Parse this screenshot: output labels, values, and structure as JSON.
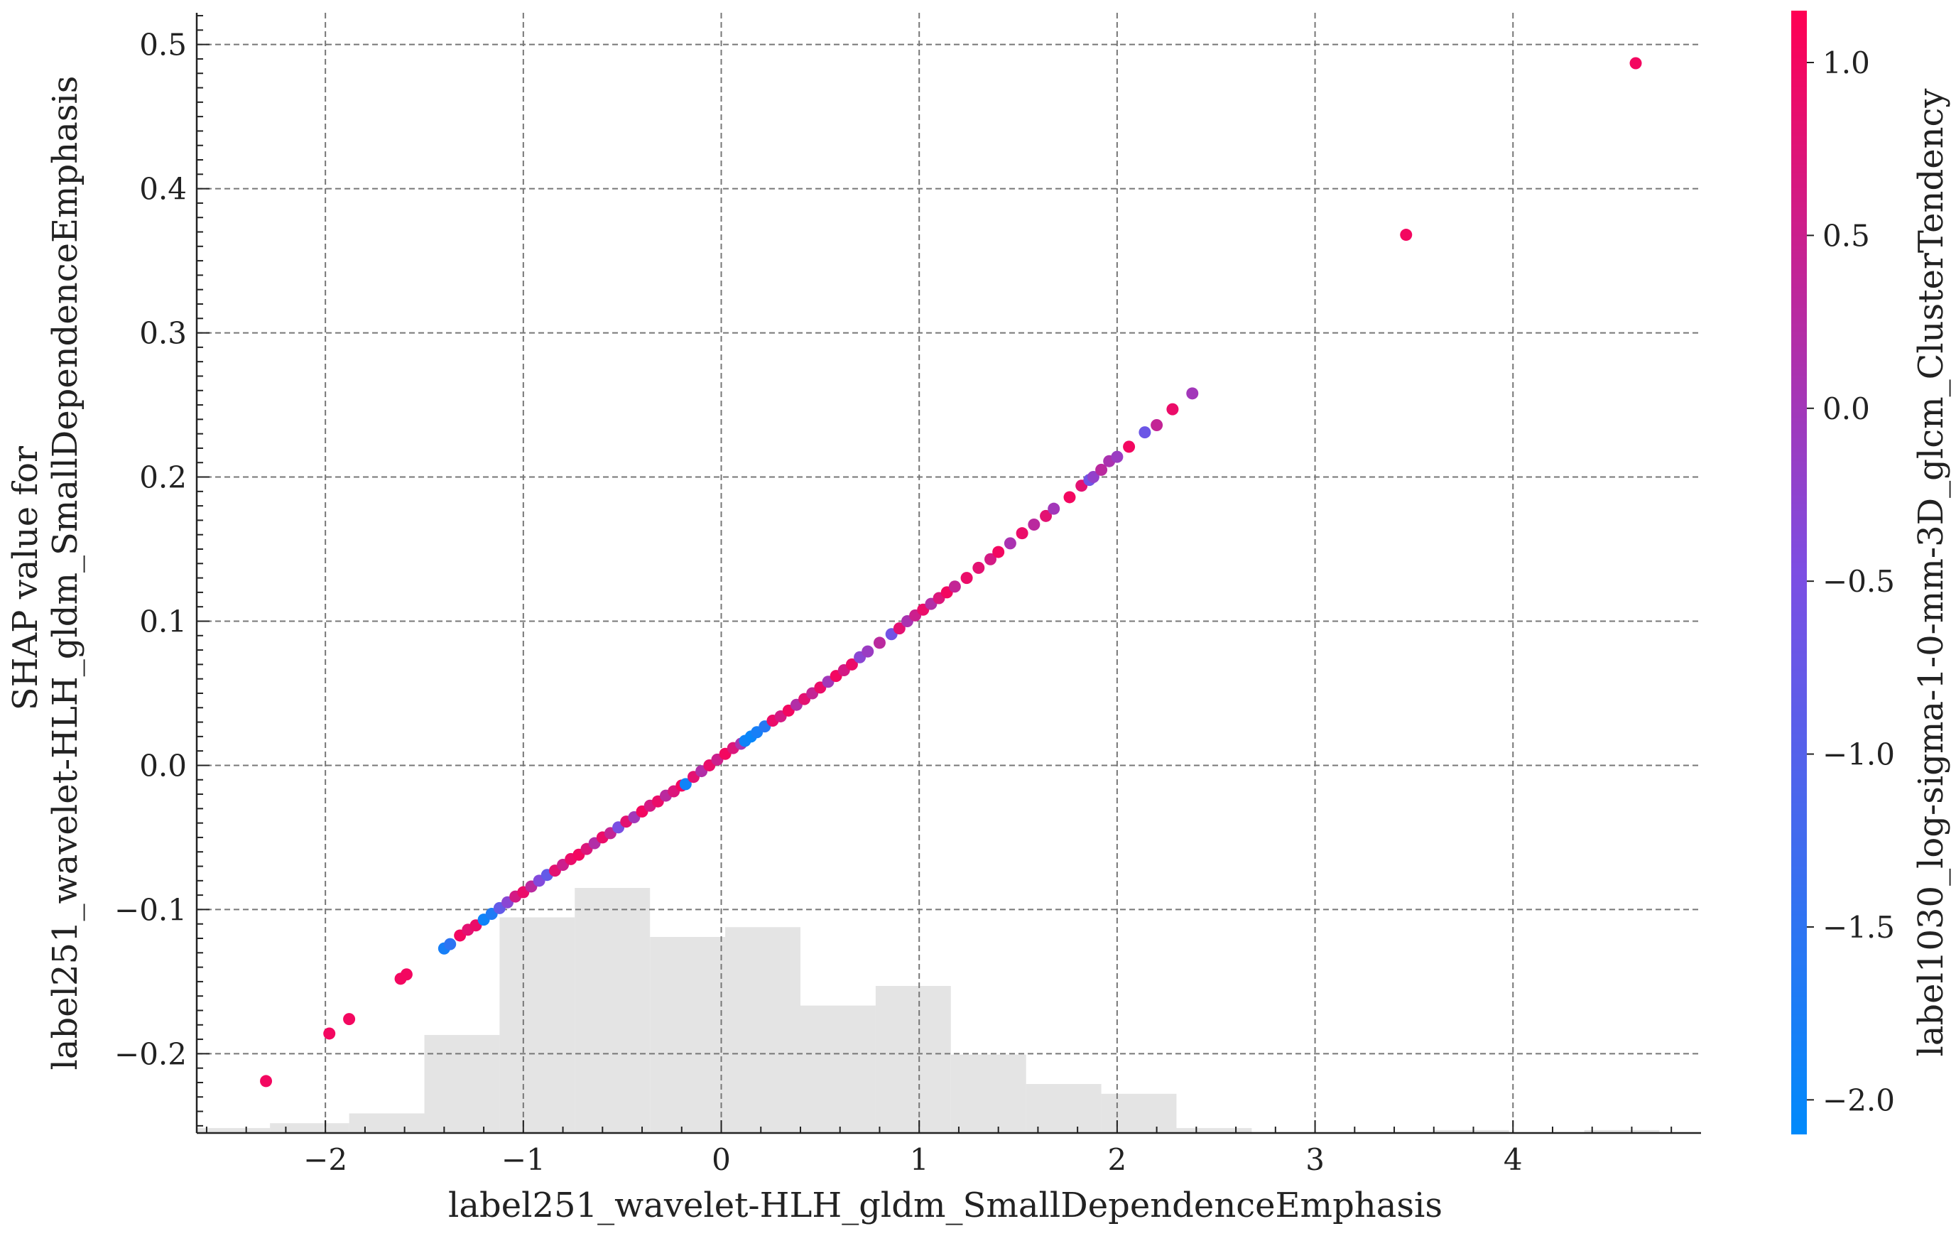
{
  "chart_data": {
    "type": "scatter",
    "title": "",
    "xlabel": "label251_wavelet-HLH_gldm_SmallDependenceEmphasis",
    "ylabel_lines": [
      "SHAP value for",
      "label251_wavelet-HLH_gldm_SmallDependenceEmphasis"
    ],
    "xlim": [
      -2.65,
      4.95
    ],
    "ylim": [
      -0.255,
      0.522
    ],
    "xticks": [
      -2,
      -1,
      0,
      1,
      2,
      3,
      4
    ],
    "xtick_labels": [
      "−2",
      "−1",
      "0",
      "1",
      "2",
      "3",
      "4"
    ],
    "yticks": [
      -0.2,
      -0.1,
      0.0,
      0.1,
      0.2,
      0.3,
      0.4,
      0.5
    ],
    "ytick_labels": [
      "−0.2",
      "−0.1",
      "0.0",
      "0.1",
      "0.2",
      "0.3",
      "0.4",
      "0.5"
    ],
    "grid": true,
    "colorbar": {
      "label": "label1030_log-sigma-1-0-mm-3D_glcm_ClusterTendency",
      "min": -2.1,
      "max": 1.15,
      "ticks": [
        -2.0,
        -1.5,
        -1.0,
        -0.5,
        0.0,
        0.5,
        1.0
      ],
      "tick_labels": [
        "−2.0",
        "−1.5",
        "−1.0",
        "−0.5",
        "0.0",
        "0.5",
        "1.0"
      ],
      "colors": [
        "#008afb",
        "#7c4ee3",
        "#ff0053"
      ]
    },
    "histogram": {
      "color": "#e4e4e4",
      "bins": [
        {
          "x0": -2.65,
          "x1": -2.28,
          "count": 0.5
        },
        {
          "x0": -2.28,
          "x1": -1.88,
          "count": 1
        },
        {
          "x0": -1.88,
          "x1": -1.5,
          "count": 2
        },
        {
          "x0": -1.5,
          "x1": -1.12,
          "count": 10
        },
        {
          "x0": -1.12,
          "x1": -0.74,
          "count": 22
        },
        {
          "x0": -0.74,
          "x1": -0.36,
          "count": 25
        },
        {
          "x0": -0.36,
          "x1": 0.02,
          "count": 20
        },
        {
          "x0": 0.02,
          "x1": 0.4,
          "count": 21
        },
        {
          "x0": 0.4,
          "x1": 0.78,
          "count": 13
        },
        {
          "x0": 0.78,
          "x1": 1.16,
          "count": 15
        },
        {
          "x0": 1.16,
          "x1": 1.54,
          "count": 8
        },
        {
          "x0": 1.54,
          "x1": 1.92,
          "count": 5
        },
        {
          "x0": 1.92,
          "x1": 2.3,
          "count": 4
        },
        {
          "x0": 2.3,
          "x1": 2.68,
          "count": 0.5
        },
        {
          "x0": 3.6,
          "x1": 3.98,
          "count": 0.3
        },
        {
          "x0": 4.36,
          "x1": 4.74,
          "count": 0.3
        }
      ]
    },
    "points": [
      {
        "x": -2.3,
        "y": -0.219,
        "c": 1.0
      },
      {
        "x": -1.98,
        "y": -0.186,
        "c": 1.0
      },
      {
        "x": -1.88,
        "y": -0.176,
        "c": 1.0
      },
      {
        "x": -1.62,
        "y": -0.148,
        "c": 1.0
      },
      {
        "x": -1.59,
        "y": -0.145,
        "c": 1.0
      },
      {
        "x": -1.4,
        "y": -0.127,
        "c": -1.8
      },
      {
        "x": -1.37,
        "y": -0.124,
        "c": -1.5
      },
      {
        "x": -1.32,
        "y": -0.118,
        "c": 1.0
      },
      {
        "x": -1.28,
        "y": -0.114,
        "c": 0.8
      },
      {
        "x": -1.24,
        "y": -0.111,
        "c": 0.9
      },
      {
        "x": -1.2,
        "y": -0.107,
        "c": -1.9
      },
      {
        "x": -1.16,
        "y": -0.103,
        "c": -1.7
      },
      {
        "x": -1.12,
        "y": -0.099,
        "c": -0.8
      },
      {
        "x": -1.08,
        "y": -0.095,
        "c": -0.3
      },
      {
        "x": -1.04,
        "y": -0.091,
        "c": 0.6
      },
      {
        "x": -1.0,
        "y": -0.088,
        "c": 0.9
      },
      {
        "x": -0.96,
        "y": -0.084,
        "c": 0.3
      },
      {
        "x": -0.92,
        "y": -0.08,
        "c": -0.4
      },
      {
        "x": -0.88,
        "y": -0.076,
        "c": -0.8
      },
      {
        "x": -0.84,
        "y": -0.073,
        "c": 0.8
      },
      {
        "x": -0.8,
        "y": -0.069,
        "c": 0.5
      },
      {
        "x": -0.76,
        "y": -0.065,
        "c": 0.9
      },
      {
        "x": -0.72,
        "y": -0.062,
        "c": 1.0
      },
      {
        "x": -0.68,
        "y": -0.058,
        "c": 0.7
      },
      {
        "x": -0.64,
        "y": -0.054,
        "c": 0.2
      },
      {
        "x": -0.6,
        "y": -0.05,
        "c": 0.9
      },
      {
        "x": -0.56,
        "y": -0.047,
        "c": 0.4
      },
      {
        "x": -0.52,
        "y": -0.043,
        "c": -0.5
      },
      {
        "x": -0.48,
        "y": -0.039,
        "c": 0.8
      },
      {
        "x": -0.44,
        "y": -0.036,
        "c": 0.0
      },
      {
        "x": -0.4,
        "y": -0.032,
        "c": 1.0
      },
      {
        "x": -0.36,
        "y": -0.028,
        "c": 0.6
      },
      {
        "x": -0.32,
        "y": -0.025,
        "c": 0.9
      },
      {
        "x": -0.28,
        "y": -0.021,
        "c": 0.3
      },
      {
        "x": -0.24,
        "y": -0.018,
        "c": 0.7
      },
      {
        "x": -0.2,
        "y": -0.014,
        "c": 1.0
      },
      {
        "x": -0.18,
        "y": -0.013,
        "c": -1.9
      },
      {
        "x": -0.14,
        "y": -0.008,
        "c": 0.8
      },
      {
        "x": -0.1,
        "y": -0.004,
        "c": 0.2
      },
      {
        "x": -0.06,
        "y": 0.0,
        "c": 0.9
      },
      {
        "x": -0.02,
        "y": 0.004,
        "c": 0.5
      },
      {
        "x": 0.02,
        "y": 0.008,
        "c": 1.0
      },
      {
        "x": 0.06,
        "y": 0.012,
        "c": 0.7
      },
      {
        "x": 0.1,
        "y": 0.015,
        "c": 0.1
      },
      {
        "x": 0.12,
        "y": 0.017,
        "c": -1.9
      },
      {
        "x": 0.15,
        "y": 0.02,
        "c": -2.0
      },
      {
        "x": 0.18,
        "y": 0.023,
        "c": -1.8
      },
      {
        "x": 0.22,
        "y": 0.027,
        "c": -1.6
      },
      {
        "x": 0.26,
        "y": 0.031,
        "c": 0.9
      },
      {
        "x": 0.3,
        "y": 0.034,
        "c": 0.6
      },
      {
        "x": 0.34,
        "y": 0.038,
        "c": 1.0
      },
      {
        "x": 0.38,
        "y": 0.042,
        "c": 0.2
      },
      {
        "x": 0.42,
        "y": 0.046,
        "c": 0.8
      },
      {
        "x": 0.46,
        "y": 0.05,
        "c": 0.4
      },
      {
        "x": 0.5,
        "y": 0.054,
        "c": 0.9
      },
      {
        "x": 0.54,
        "y": 0.058,
        "c": 0.0
      },
      {
        "x": 0.58,
        "y": 0.062,
        "c": 1.0
      },
      {
        "x": 0.62,
        "y": 0.066,
        "c": 0.6
      },
      {
        "x": 0.66,
        "y": 0.07,
        "c": 0.9
      },
      {
        "x": 0.7,
        "y": 0.075,
        "c": -0.3
      },
      {
        "x": 0.74,
        "y": 0.079,
        "c": -0.1
      },
      {
        "x": 0.8,
        "y": 0.085,
        "c": 0.3
      },
      {
        "x": 0.86,
        "y": 0.091,
        "c": -0.6
      },
      {
        "x": 0.9,
        "y": 0.095,
        "c": 0.8
      },
      {
        "x": 0.94,
        "y": 0.1,
        "c": 0.1
      },
      {
        "x": 0.98,
        "y": 0.104,
        "c": 0.5
      },
      {
        "x": 1.02,
        "y": 0.108,
        "c": 0.9
      },
      {
        "x": 1.06,
        "y": 0.112,
        "c": 0.2
      },
      {
        "x": 1.1,
        "y": 0.116,
        "c": 0.7
      },
      {
        "x": 1.14,
        "y": 0.12,
        "c": 1.0
      },
      {
        "x": 1.18,
        "y": 0.124,
        "c": 0.4
      },
      {
        "x": 1.24,
        "y": 0.13,
        "c": 0.9
      },
      {
        "x": 1.3,
        "y": 0.137,
        "c": 0.8
      },
      {
        "x": 1.36,
        "y": 0.143,
        "c": 0.6
      },
      {
        "x": 1.4,
        "y": 0.148,
        "c": 1.0
      },
      {
        "x": 1.46,
        "y": 0.154,
        "c": 0.1
      },
      {
        "x": 1.52,
        "y": 0.161,
        "c": 0.9
      },
      {
        "x": 1.58,
        "y": 0.167,
        "c": 0.3
      },
      {
        "x": 1.64,
        "y": 0.173,
        "c": 0.8
      },
      {
        "x": 1.68,
        "y": 0.178,
        "c": 0.0
      },
      {
        "x": 1.76,
        "y": 0.186,
        "c": 1.0
      },
      {
        "x": 1.82,
        "y": 0.194,
        "c": 0.8
      },
      {
        "x": 1.86,
        "y": 0.198,
        "c": -0.6
      },
      {
        "x": 1.88,
        "y": 0.2,
        "c": -0.2
      },
      {
        "x": 1.92,
        "y": 0.205,
        "c": 0.3
      },
      {
        "x": 1.96,
        "y": 0.211,
        "c": 0.1
      },
      {
        "x": 2.0,
        "y": 0.214,
        "c": -0.1
      },
      {
        "x": 2.06,
        "y": 0.221,
        "c": 1.0
      },
      {
        "x": 2.14,
        "y": 0.231,
        "c": -0.7
      },
      {
        "x": 2.2,
        "y": 0.236,
        "c": 0.4
      },
      {
        "x": 2.28,
        "y": 0.247,
        "c": 0.9
      },
      {
        "x": 2.38,
        "y": 0.258,
        "c": 0.0
      },
      {
        "x": 3.46,
        "y": 0.368,
        "c": 1.0
      },
      {
        "x": 4.62,
        "y": 0.487,
        "c": 1.0
      }
    ]
  }
}
